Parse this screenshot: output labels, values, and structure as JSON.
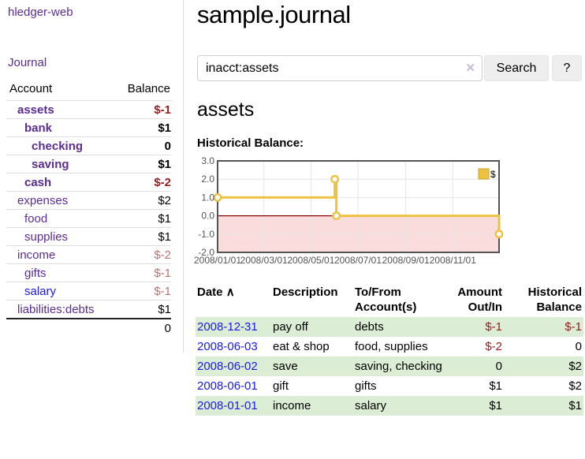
{
  "app": {
    "title": "hledger-web"
  },
  "sidebar": {
    "journal_label": "Journal",
    "accounts": {
      "col_account": "Account",
      "col_balance": "Balance",
      "rows": [
        {
          "name": "assets",
          "balance": "$-1",
          "level": 0,
          "bold": true,
          "name_color": "purple",
          "balance_color": "neg-strong"
        },
        {
          "name": "bank",
          "balance": "$1",
          "level": 1,
          "bold": true,
          "name_color": "purple",
          "balance_color": ""
        },
        {
          "name": "checking",
          "balance": "0",
          "level": 2,
          "bold": true,
          "name_color": "purple",
          "balance_color": ""
        },
        {
          "name": "saving",
          "balance": "$1",
          "level": 2,
          "bold": true,
          "name_color": "purple",
          "balance_color": ""
        },
        {
          "name": "cash",
          "balance": "$-2",
          "level": 1,
          "bold": true,
          "name_color": "purple",
          "balance_color": "neg-strong"
        },
        {
          "name": "expenses",
          "balance": "$2",
          "level": 0,
          "bold": false,
          "name_color": "purple",
          "balance_color": ""
        },
        {
          "name": "food",
          "balance": "$1",
          "level": 1,
          "bold": false,
          "name_color": "purple",
          "balance_color": ""
        },
        {
          "name": "supplies",
          "balance": "$1",
          "level": 1,
          "bold": false,
          "name_color": "purple",
          "balance_color": ""
        },
        {
          "name": "income",
          "balance": "$-2",
          "level": 0,
          "bold": false,
          "name_color": "purple",
          "balance_color": "neg-muted"
        },
        {
          "name": "gifts",
          "balance": "$-1",
          "level": 1,
          "bold": false,
          "name_color": "purple",
          "balance_color": "neg-muted"
        },
        {
          "name": "salary",
          "balance": "$-1",
          "level": 1,
          "bold": false,
          "name_color": "blue",
          "balance_color": "neg-muted"
        },
        {
          "name": "liabilities:debts",
          "balance": "$1",
          "level": 0,
          "bold": false,
          "name_color": "purple",
          "balance_color": ""
        }
      ],
      "total": "0"
    }
  },
  "main": {
    "title": "sample.journal",
    "search": {
      "value": "inacct:assets",
      "clear_icon": "✕",
      "button_label": "Search",
      "help_label": "?"
    },
    "account_heading": "assets",
    "chart_heading": "Historical Balance:",
    "register": {
      "col_date": "Date",
      "sort_icon": "∧",
      "col_description": "Description",
      "col_accounts": "To/From Account(s)",
      "col_amount": "Amount Out/In",
      "col_balance": "Historical Balance",
      "rows": [
        {
          "date": "2008-12-31",
          "description": "pay off",
          "accounts": "debts",
          "amount": "$-1",
          "amount_color": "neg-strong",
          "balance": "$-1",
          "balance_color": "neg-strong",
          "shaded": true
        },
        {
          "date": "2008-06-03",
          "description": "eat & shop",
          "accounts": "food, supplies",
          "amount": "$-2",
          "amount_color": "neg-strong",
          "balance": "0",
          "balance_color": "",
          "shaded": false
        },
        {
          "date": "2008-06-02",
          "description": "save",
          "accounts": "saving, checking",
          "amount": "0",
          "amount_color": "",
          "balance": "$2",
          "balance_color": "",
          "shaded": true
        },
        {
          "date": "2008-06-01",
          "description": "gift",
          "accounts": "gifts",
          "amount": "$1",
          "amount_color": "",
          "balance": "$2",
          "balance_color": "",
          "shaded": false
        },
        {
          "date": "2008-01-01",
          "description": "income",
          "accounts": "salary",
          "amount": "$1",
          "amount_color": "",
          "balance": "$1",
          "balance_color": "",
          "shaded": true
        }
      ]
    }
  },
  "chart_data": {
    "type": "line",
    "title": "Historical Balance:",
    "x_range": [
      "2008-01-01",
      "2008-12-31"
    ],
    "x_ticks": [
      "2008/01/01",
      "2008/03/01",
      "2008/05/01",
      "2008/07/01",
      "2008/09/01",
      "2008/11/01"
    ],
    "y_ticks": [
      "3.0",
      "2.0",
      "1.0",
      "0.0",
      "-1.0",
      "-2.0"
    ],
    "ylim": [
      -2,
      3
    ],
    "grid": true,
    "legend_position": "top-right",
    "series": [
      {
        "name": "$",
        "color": "#edc240",
        "step": true,
        "points": [
          [
            "2008-01-01",
            1
          ],
          [
            "2008-06-01",
            2
          ],
          [
            "2008-06-03",
            0
          ],
          [
            "2008-12-31",
            -1
          ]
        ]
      }
    ],
    "negative_region_fill": "#fbdcdc",
    "zero_line_color": "#8b0000",
    "border_color": "#545454",
    "grid_color": "#e5e5e5",
    "tick_label_color": "#545454"
  }
}
